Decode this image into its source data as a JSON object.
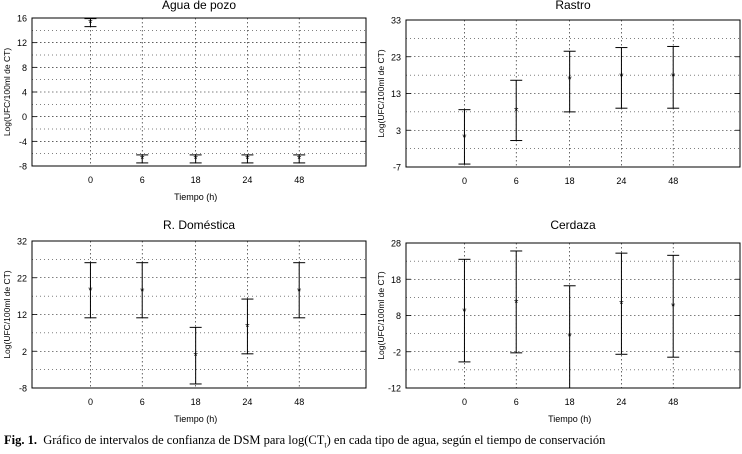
{
  "caption": {
    "label": "Fig. 1.",
    "text_before": "Gráfico de intervalos de confianza de DSM para log(CT",
    "subscript": "t",
    "text_after": ") en cada tipo de agua, según el tiempo de conservación"
  },
  "chart_data": [
    {
      "type": "errorbar",
      "title": "Agua de pozo",
      "xlabel": "Tiempo (h)",
      "ylabel": "Log(UFC/100ml de CT)",
      "categories": [
        "0",
        "6",
        "18",
        "24",
        "48"
      ],
      "yticks": [
        -8,
        -4,
        0,
        4,
        8,
        12,
        16
      ],
      "ylim": [
        -8,
        16
      ],
      "means": [
        15.3,
        -6.8,
        -6.8,
        -6.8,
        -6.8
      ],
      "lower": [
        14.6,
        -7.5,
        -7.5,
        -7.5,
        -7.5
      ],
      "upper": [
        15.9,
        -6.2,
        -6.2,
        -6.2,
        -6.2
      ],
      "grid": true
    },
    {
      "type": "errorbar",
      "title": "Rastro",
      "xlabel": "",
      "ylabel": "Log(UFC/100ml de CT)",
      "categories": [
        "0",
        "6",
        "18",
        "24",
        "48"
      ],
      "yticks": [
        -7,
        3,
        13,
        23,
        33
      ],
      "ylim": [
        -7,
        33
      ],
      "means": [
        1.2,
        8.4,
        17.0,
        17.8,
        17.8
      ],
      "lower": [
        -6.2,
        0.2,
        8.0,
        9.0,
        9.0
      ],
      "upper": [
        8.6,
        16.6,
        24.5,
        25.5,
        25.8
      ],
      "grid": true
    },
    {
      "type": "errorbar",
      "title": "R. Doméstica",
      "xlabel": "Tiempo (h)",
      "ylabel": "Log(UFC/100ml de CT)",
      "categories": [
        "0",
        "6",
        "18",
        "24",
        "48"
      ],
      "yticks": [
        -8,
        2,
        12,
        22,
        32
      ],
      "ylim": [
        -8,
        32
      ],
      "means": [
        18.6,
        18.4,
        0.9,
        8.7,
        18.4
      ],
      "lower": [
        11.1,
        11.1,
        -6.9,
        1.3,
        11.1
      ],
      "upper": [
        26.1,
        26.1,
        8.5,
        16.2,
        26.1
      ],
      "grid": true
    },
    {
      "type": "errorbar",
      "title": "Cerdaza",
      "xlabel": "Tiempo (h)",
      "ylabel": "Log(UFC/100ml de CT)",
      "categories": [
        "0",
        "6",
        "18",
        "24",
        "48"
      ],
      "yticks": [
        -12,
        -2,
        8,
        18,
        28
      ],
      "ylim": [
        -12,
        28
      ],
      "means": [
        9.3,
        11.6,
        2.3,
        11.3,
        10.6
      ],
      "lower": [
        -4.8,
        -2.3,
        -12.0,
        -2.7,
        -3.5
      ],
      "upper": [
        23.5,
        25.8,
        16.2,
        25.2,
        24.6
      ],
      "grid": true
    }
  ]
}
